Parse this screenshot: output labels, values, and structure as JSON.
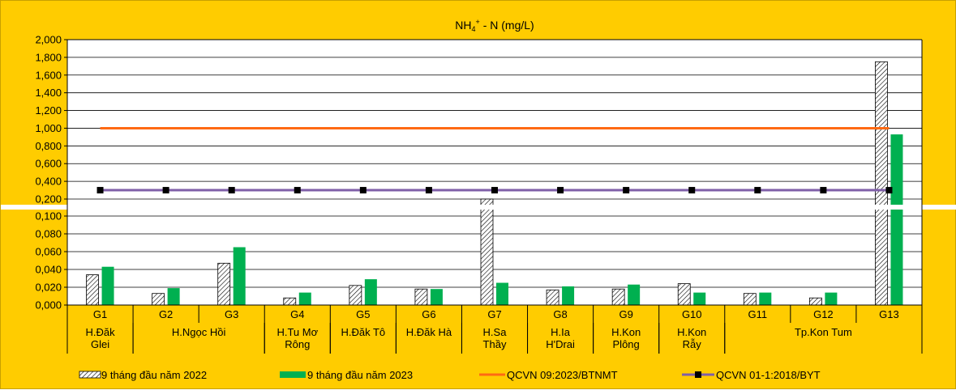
{
  "chart_data": {
    "type": "bar",
    "title_main": "NH",
    "title_sub": "4",
    "title_sup": "+",
    "title_rest": " - N (mg/L)",
    "categories": [
      "G1",
      "G2",
      "G3",
      "G4",
      "G5",
      "G6",
      "G7",
      "G8",
      "G9",
      "G10",
      "G11",
      "G12",
      "G13"
    ],
    "groups": [
      {
        "lines": [
          "H.Đăk",
          "Glei"
        ],
        "span": [
          0,
          0
        ]
      },
      {
        "lines": [
          "H.Ngọc Hồi"
        ],
        "span": [
          1,
          2
        ]
      },
      {
        "lines": [
          "H.Tu Mơ",
          "Rông"
        ],
        "span": [
          3,
          3
        ]
      },
      {
        "lines": [
          "H.Đăk Tô"
        ],
        "span": [
          4,
          4
        ]
      },
      {
        "lines": [
          "H.Đăk Hà"
        ],
        "span": [
          5,
          5
        ]
      },
      {
        "lines": [
          "H.Sa",
          "Thầy"
        ],
        "span": [
          6,
          6
        ]
      },
      {
        "lines": [
          "H.Ia",
          "H'Drai"
        ],
        "span": [
          7,
          7
        ]
      },
      {
        "lines": [
          "H.Kon",
          "Plông"
        ],
        "span": [
          8,
          8
        ]
      },
      {
        "lines": [
          "H.Kon",
          "Rẫy"
        ],
        "span": [
          9,
          9
        ]
      },
      {
        "lines": [
          "Tp.Kon Tum"
        ],
        "span": [
          10,
          12
        ]
      }
    ],
    "series": [
      {
        "name": "9 tháng đầu năm 2022",
        "style": "hatched",
        "color": "#ffffff",
        "values": [
          0.034,
          0.013,
          0.047,
          0.008,
          0.022,
          0.018,
          0.2,
          0.017,
          0.018,
          0.024,
          0.013,
          0.008,
          1.75
        ]
      },
      {
        "name": "9 tháng đầu năm 2023",
        "style": "solid",
        "color": "#00b050",
        "values": [
          0.043,
          0.019,
          0.065,
          0.014,
          0.029,
          0.018,
          0.025,
          0.021,
          0.023,
          0.014,
          0.014,
          0.014,
          0.93
        ]
      }
    ],
    "reference_lines": [
      {
        "name": "QCVN 09:2023/BTNMT",
        "value": 1.0,
        "color": "#ff6a13",
        "marker": "none"
      },
      {
        "name": "QCVN 01-1:2018/BYT",
        "value": 0.3,
        "color": "#7f5fa8",
        "marker": "square"
      }
    ],
    "axis": {
      "broken": true,
      "lower": {
        "min": 0.0,
        "max": 0.1,
        "ticks": [
          "0,000",
          "0,020",
          "0,040",
          "0,060",
          "0,080",
          "0,100"
        ]
      },
      "upper": {
        "min": 0.2,
        "max": 2.0,
        "ticks": [
          "0,200",
          "0,400",
          "0,600",
          "0,800",
          "1,000",
          "1,200",
          "1,400",
          "1,600",
          "1,800",
          "2,000"
        ]
      }
    },
    "legend_position": "bottom",
    "grid": true
  }
}
